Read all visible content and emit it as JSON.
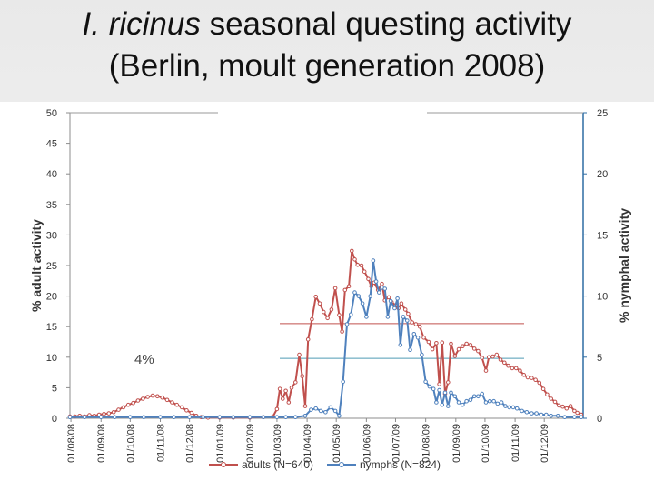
{
  "title": {
    "line1_italic": "I. ricinus",
    "line1_rest": " seasonal questing activity",
    "line2": "(Berlin, moult generation 2008)"
  },
  "colors": {
    "adults": "#c0504d",
    "nymphs": "#4f81bd",
    "right_axis": "#2e6da4",
    "annotation_line_adults": "#c0504d",
    "annotation_line_nymphs": "#4f9bb5"
  },
  "chart_data": {
    "type": "line",
    "ylabel": "% adult activity",
    "y2label": "% nymphal activity",
    "ylim": [
      0,
      50
    ],
    "y2lim": [
      0,
      25
    ],
    "yticks": [
      0,
      5,
      10,
      15,
      20,
      25,
      30,
      35,
      40,
      45,
      50
    ],
    "y2ticks": [
      0,
      5,
      10,
      15,
      20,
      25
    ],
    "xticks": [
      "01/08/08",
      "01/09/08",
      "01/10/08",
      "01/11/08",
      "01/12/08",
      "01/01/09",
      "01/02/09",
      "01/03/09",
      "01/04/09",
      "01/05/09",
      "01/06/09",
      "01/07/09",
      "01/08/09",
      "01/09/09",
      "01/10/09",
      "01/11/09",
      "01/12/09"
    ],
    "xlim": [
      "2008-07-31",
      "2010-01-10"
    ],
    "grid": false,
    "legend_position": "bottom",
    "annotation": "4%",
    "reference_lines": [
      {
        "axis": "left",
        "value": 15.5,
        "series": "adults (N=640)"
      },
      {
        "axis": "left",
        "value": 9.8,
        "series": "nymphs (N=824)"
      }
    ],
    "series": [
      {
        "name": "adults (N=640)",
        "axis": "left",
        "points": [
          [
            "2008-07-31",
            0.3
          ],
          [
            "2008-08-05",
            0.3
          ],
          [
            "2008-08-10",
            0.4
          ],
          [
            "2008-08-15",
            0.3
          ],
          [
            "2008-08-20",
            0.5
          ],
          [
            "2008-08-25",
            0.4
          ],
          [
            "2008-08-30",
            0.6
          ],
          [
            "2008-09-04",
            0.7
          ],
          [
            "2008-09-09",
            0.8
          ],
          [
            "2008-09-14",
            1.0
          ],
          [
            "2008-09-19",
            1.4
          ],
          [
            "2008-09-24",
            1.8
          ],
          [
            "2008-09-29",
            2.2
          ],
          [
            "2008-10-04",
            2.5
          ],
          [
            "2008-10-09",
            2.9
          ],
          [
            "2008-10-14",
            3.2
          ],
          [
            "2008-10-19",
            3.5
          ],
          [
            "2008-10-24",
            3.7
          ],
          [
            "2008-10-29",
            3.6
          ],
          [
            "2008-11-03",
            3.4
          ],
          [
            "2008-11-08",
            3.0
          ],
          [
            "2008-11-13",
            2.6
          ],
          [
            "2008-11-18",
            2.2
          ],
          [
            "2008-11-23",
            1.8
          ],
          [
            "2008-11-28",
            1.3
          ],
          [
            "2008-12-03",
            0.9
          ],
          [
            "2008-12-08",
            0.4
          ],
          [
            "2008-12-13",
            0.2
          ],
          [
            "2008-12-20",
            0.1
          ],
          [
            "2009-01-01",
            0.1
          ],
          [
            "2009-01-15",
            0.1
          ],
          [
            "2009-02-01",
            0.1
          ],
          [
            "2009-02-15",
            0.2
          ],
          [
            "2009-02-25",
            0.3
          ],
          [
            "2009-03-01",
            1.5
          ],
          [
            "2009-03-04",
            4.8
          ],
          [
            "2009-03-07",
            3.2
          ],
          [
            "2009-03-10",
            4.5
          ],
          [
            "2009-03-13",
            2.6
          ],
          [
            "2009-03-16",
            5.0
          ],
          [
            "2009-03-20",
            5.9
          ],
          [
            "2009-03-24",
            10.4
          ],
          [
            "2009-03-27",
            6.9
          ],
          [
            "2009-03-30",
            2.0
          ],
          [
            "2009-04-02",
            12.9
          ],
          [
            "2009-04-06",
            16.2
          ],
          [
            "2009-04-10",
            19.9
          ],
          [
            "2009-04-14",
            18.8
          ],
          [
            "2009-04-18",
            17.4
          ],
          [
            "2009-04-22",
            16.4
          ],
          [
            "2009-04-26",
            17.8
          ],
          [
            "2009-04-30",
            21.3
          ],
          [
            "2009-05-04",
            16.9
          ],
          [
            "2009-05-07",
            14.2
          ],
          [
            "2009-05-10",
            21.0
          ],
          [
            "2009-05-14",
            21.6
          ],
          [
            "2009-05-17",
            27.4
          ],
          [
            "2009-05-20",
            26.0
          ],
          [
            "2009-05-23",
            25.1
          ],
          [
            "2009-05-27",
            25.0
          ],
          [
            "2009-05-30",
            24.0
          ],
          [
            "2009-06-03",
            22.8
          ],
          [
            "2009-06-06",
            21.6
          ],
          [
            "2009-06-09",
            22.2
          ],
          [
            "2009-06-13",
            21.0
          ],
          [
            "2009-06-17",
            22.0
          ],
          [
            "2009-06-20",
            19.3
          ],
          [
            "2009-06-24",
            19.8
          ],
          [
            "2009-06-27",
            19.0
          ],
          [
            "2009-07-01",
            18.5
          ],
          [
            "2009-07-04",
            18.0
          ],
          [
            "2009-07-07",
            18.8
          ],
          [
            "2009-07-11",
            17.8
          ],
          [
            "2009-07-14",
            17.1
          ],
          [
            "2009-07-18",
            15.7
          ],
          [
            "2009-07-22",
            15.4
          ],
          [
            "2009-07-26",
            15.0
          ],
          [
            "2009-07-30",
            13.2
          ],
          [
            "2009-08-04",
            12.5
          ],
          [
            "2009-08-08",
            11.3
          ],
          [
            "2009-08-12",
            12.3
          ],
          [
            "2009-08-15",
            5.6
          ],
          [
            "2009-08-18",
            12.4
          ],
          [
            "2009-08-21",
            4.0
          ],
          [
            "2009-08-24",
            5.9
          ],
          [
            "2009-08-27",
            12.2
          ],
          [
            "2009-08-31",
            10.2
          ],
          [
            "2009-09-04",
            11.3
          ],
          [
            "2009-09-08",
            11.8
          ],
          [
            "2009-09-12",
            12.2
          ],
          [
            "2009-09-16",
            12.0
          ],
          [
            "2009-09-20",
            11.4
          ],
          [
            "2009-09-24",
            11.0
          ],
          [
            "2009-09-28",
            9.9
          ],
          [
            "2009-10-02",
            7.8
          ],
          [
            "2009-10-05",
            10.0
          ],
          [
            "2009-10-09",
            10.1
          ],
          [
            "2009-10-13",
            10.4
          ],
          [
            "2009-10-17",
            9.6
          ],
          [
            "2009-10-21",
            9.1
          ],
          [
            "2009-10-25",
            8.6
          ],
          [
            "2009-10-29",
            8.2
          ],
          [
            "2009-11-02",
            8.2
          ],
          [
            "2009-11-06",
            7.8
          ],
          [
            "2009-11-10",
            7.1
          ],
          [
            "2009-11-14",
            6.7
          ],
          [
            "2009-11-18",
            6.6
          ],
          [
            "2009-11-22",
            6.3
          ],
          [
            "2009-11-26",
            5.8
          ],
          [
            "2009-11-30",
            4.8
          ],
          [
            "2009-12-04",
            3.9
          ],
          [
            "2009-12-08",
            3.2
          ],
          [
            "2009-12-12",
            2.7
          ],
          [
            "2009-12-16",
            2.1
          ],
          [
            "2009-12-20",
            1.9
          ],
          [
            "2009-12-24",
            1.6
          ],
          [
            "2009-12-28",
            2.0
          ],
          [
            "2010-01-01",
            1.2
          ],
          [
            "2010-01-04",
            0.9
          ],
          [
            "2010-01-08",
            0.6
          ]
        ]
      },
      {
        "name": "nymphs (N=824)",
        "axis": "right",
        "points": [
          [
            "2008-07-31",
            0.1
          ],
          [
            "2008-08-15",
            0.1
          ],
          [
            "2008-09-01",
            0.1
          ],
          [
            "2008-09-15",
            0.1
          ],
          [
            "2008-10-01",
            0.1
          ],
          [
            "2008-10-15",
            0.1
          ],
          [
            "2008-11-01",
            0.1
          ],
          [
            "2008-11-15",
            0.1
          ],
          [
            "2008-12-01",
            0.1
          ],
          [
            "2008-12-15",
            0.1
          ],
          [
            "2009-01-01",
            0.1
          ],
          [
            "2009-01-15",
            0.1
          ],
          [
            "2009-02-01",
            0.1
          ],
          [
            "2009-02-15",
            0.1
          ],
          [
            "2009-03-01",
            0.1
          ],
          [
            "2009-03-10",
            0.1
          ],
          [
            "2009-03-20",
            0.1
          ],
          [
            "2009-03-30",
            0.2
          ],
          [
            "2009-04-05",
            0.7
          ],
          [
            "2009-04-10",
            0.8
          ],
          [
            "2009-04-15",
            0.6
          ],
          [
            "2009-04-20",
            0.5
          ],
          [
            "2009-04-25",
            0.9
          ],
          [
            "2009-04-30",
            0.6
          ],
          [
            "2009-05-04",
            0.2
          ],
          [
            "2009-05-08",
            3.0
          ],
          [
            "2009-05-12",
            7.7
          ],
          [
            "2009-05-16",
            8.5
          ],
          [
            "2009-05-20",
            10.3
          ],
          [
            "2009-05-24",
            10.0
          ],
          [
            "2009-05-28",
            9.4
          ],
          [
            "2009-06-01",
            8.3
          ],
          [
            "2009-06-05",
            10.0
          ],
          [
            "2009-06-08",
            12.9
          ],
          [
            "2009-06-11",
            11.2
          ],
          [
            "2009-06-14",
            10.3
          ],
          [
            "2009-06-17",
            10.7
          ],
          [
            "2009-06-20",
            10.6
          ],
          [
            "2009-06-23",
            8.3
          ],
          [
            "2009-06-26",
            9.6
          ],
          [
            "2009-06-30",
            9.0
          ],
          [
            "2009-07-03",
            9.8
          ],
          [
            "2009-07-06",
            6.0
          ],
          [
            "2009-07-09",
            8.3
          ],
          [
            "2009-07-13",
            8.0
          ],
          [
            "2009-07-16",
            5.6
          ],
          [
            "2009-07-20",
            6.9
          ],
          [
            "2009-07-24",
            6.6
          ],
          [
            "2009-07-28",
            5.2
          ],
          [
            "2009-08-01",
            3.0
          ],
          [
            "2009-08-05",
            2.6
          ],
          [
            "2009-08-09",
            2.4
          ],
          [
            "2009-08-12",
            1.3
          ],
          [
            "2009-08-15",
            2.3
          ],
          [
            "2009-08-18",
            1.1
          ],
          [
            "2009-08-21",
            2.1
          ],
          [
            "2009-08-24",
            1.0
          ],
          [
            "2009-08-27",
            2.1
          ],
          [
            "2009-08-31",
            1.8
          ],
          [
            "2009-09-04",
            1.3
          ],
          [
            "2009-09-08",
            1.1
          ],
          [
            "2009-09-12",
            1.4
          ],
          [
            "2009-09-16",
            1.5
          ],
          [
            "2009-09-20",
            1.8
          ],
          [
            "2009-09-24",
            1.8
          ],
          [
            "2009-09-28",
            2.0
          ],
          [
            "2009-10-02",
            1.3
          ],
          [
            "2009-10-06",
            1.4
          ],
          [
            "2009-10-10",
            1.4
          ],
          [
            "2009-10-14",
            1.2
          ],
          [
            "2009-10-18",
            1.3
          ],
          [
            "2009-10-22",
            1.0
          ],
          [
            "2009-10-26",
            0.9
          ],
          [
            "2009-10-30",
            0.9
          ],
          [
            "2009-11-03",
            0.8
          ],
          [
            "2009-11-08",
            0.6
          ],
          [
            "2009-11-13",
            0.5
          ],
          [
            "2009-11-18",
            0.4
          ],
          [
            "2009-11-23",
            0.4
          ],
          [
            "2009-11-28",
            0.3
          ],
          [
            "2009-12-03",
            0.3
          ],
          [
            "2009-12-08",
            0.2
          ],
          [
            "2009-12-15",
            0.2
          ],
          [
            "2009-12-22",
            0.1
          ],
          [
            "2010-01-01",
            0.1
          ],
          [
            "2010-01-08",
            0.1
          ]
        ]
      }
    ]
  }
}
